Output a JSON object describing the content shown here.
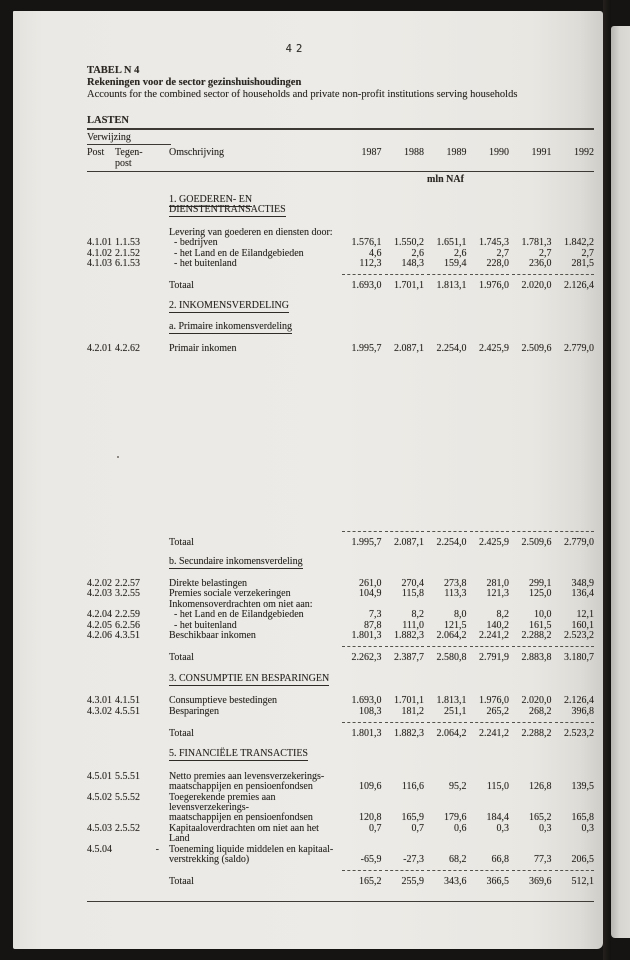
{
  "page": {
    "number": "42"
  },
  "title": {
    "id": "TABEL N 4",
    "nl": "Rekeningen voor de sector gezinshuishoudingen",
    "en": "Accounts for the combined sector of households and private non-profit institutions serving households"
  },
  "table": {
    "section_label": "LASTEN",
    "ref_label": "Verwijzing",
    "columns": {
      "post": "Post",
      "tegenpost_l1": "Tegen-",
      "tegenpost_l2": "post",
      "omschrijving": "Omschrijving"
    },
    "years": [
      "1987",
      "1988",
      "1989",
      "1990",
      "1991",
      "1992"
    ],
    "unit": "mln NAf",
    "rows": [
      {
        "type": "section",
        "label": "1. GOEDEREN- EN DIENSTENTRANSACTIES"
      },
      {
        "type": "gap",
        "h": 12
      },
      {
        "type": "text",
        "label": "Levering van goederen en diensten door:"
      },
      {
        "type": "data",
        "post": "4.1.01",
        "tegen": "1.1.53",
        "label": "- bedrijven",
        "indent": true,
        "values": [
          "1.576,1",
          "1.550,2",
          "1.651,1",
          "1.745,3",
          "1.781,3",
          "1.842,2"
        ]
      },
      {
        "type": "data",
        "post": "4.1.02",
        "tegen": "2.1.52",
        "label": "- het Land en de Eilandgebieden",
        "indent": true,
        "values": [
          "4,6",
          "2,6",
          "2,6",
          "2,7",
          "2,7",
          "2,7"
        ]
      },
      {
        "type": "data",
        "post": "4.1.03",
        "tegen": "6.1.53",
        "label": "- het buitenland",
        "indent": true,
        "values": [
          "112,3",
          "148,3",
          "159,4",
          "228,0",
          "236,0",
          "281,5"
        ]
      },
      {
        "type": "dashes"
      },
      {
        "type": "total",
        "label": "Totaal",
        "values": [
          "1.693,0",
          "1.701,1",
          "1.813,1",
          "1.976,0",
          "2.020,0",
          "2.126,4"
        ]
      },
      {
        "type": "gap",
        "h": 9
      },
      {
        "type": "section",
        "label": "2. INKOMENSVERDELING"
      },
      {
        "type": "gap",
        "h": 11
      },
      {
        "type": "sub",
        "label": "a. Primaire inkomensverdeling"
      },
      {
        "type": "gap",
        "h": 11
      },
      {
        "type": "data",
        "post": "4.2.01",
        "tegen": "4.2.62",
        "label": "Primair inkomen",
        "values": [
          "1.995,7",
          "2.087,1",
          "2.254,0",
          "2.425,9",
          "2.509,6",
          "2.779,0"
        ]
      },
      {
        "type": "gap",
        "h": 172
      },
      {
        "type": "dashes"
      },
      {
        "type": "total",
        "label": "Totaal",
        "values": [
          "1.995,7",
          "2.087,1",
          "2.254,0",
          "2.425,9",
          "2.509,6",
          "2.779,0"
        ]
      },
      {
        "type": "gap",
        "h": 9
      },
      {
        "type": "sub",
        "label": "b. Secundaire inkomensverdeling"
      },
      {
        "type": "gap",
        "h": 11
      },
      {
        "type": "data",
        "post": "4.2.02",
        "tegen": "2.2.57",
        "label": "Direkte belastingen",
        "values": [
          "261,0",
          "270,4",
          "273,8",
          "281,0",
          "299,1",
          "348,9"
        ]
      },
      {
        "type": "data",
        "post": "4.2.03",
        "tegen": "3.2.55",
        "label": "Premies sociale verzekeringen",
        "values": [
          "104,9",
          "115,8",
          "113,3",
          "121,3",
          "125,0",
          "136,4"
        ]
      },
      {
        "type": "text",
        "label": "Inkomensoverdrachten om niet aan:"
      },
      {
        "type": "data",
        "post": "4.2.04",
        "tegen": "2.2.59",
        "label": "- het Land en de Eilandgebieden",
        "indent": true,
        "values": [
          "7,3",
          "8,2",
          "8,0",
          "8,2",
          "10,0",
          "12,1"
        ]
      },
      {
        "type": "data",
        "post": "4.2.05",
        "tegen": "6.2.56",
        "label": "- het buitenland",
        "indent": true,
        "values": [
          "87,8",
          "111,0",
          "121,5",
          "140,2",
          "161,5",
          "160,1"
        ]
      },
      {
        "type": "data",
        "post": "4.2.06",
        "tegen": "4.3.51",
        "label": "Beschikbaar inkomen",
        "values": [
          "1.801,3",
          "1.882,3",
          "2.064,2",
          "2.241,2",
          "2.288,2",
          "2.523,2"
        ]
      },
      {
        "type": "dashes"
      },
      {
        "type": "total",
        "label": "Totaal",
        "values": [
          "2.262,3",
          "2.387,7",
          "2.580,8",
          "2.791,9",
          "2.883,8",
          "3.180,7"
        ]
      },
      {
        "type": "gap",
        "h": 10
      },
      {
        "type": "section",
        "label": "3. CONSUMPTIE EN BESPARINGEN"
      },
      {
        "type": "gap",
        "h": 12
      },
      {
        "type": "data",
        "post": "4.3.01",
        "tegen": "4.1.51",
        "label": "Consumptieve bestedingen",
        "values": [
          "1.693,0",
          "1.701,1",
          "1.813,1",
          "1.976,0",
          "2.020,0",
          "2.126,4"
        ]
      },
      {
        "type": "data",
        "post": "4.3.02",
        "tegen": "4.5.51",
        "label": "Besparingen",
        "values": [
          "108,3",
          "181,2",
          "251,1",
          "265,2",
          "268,2",
          "396,8"
        ]
      },
      {
        "type": "dashes"
      },
      {
        "type": "total",
        "label": "Totaal",
        "values": [
          "1.801,3",
          "1.882,3",
          "2.064,2",
          "2.241,2",
          "2.288,2",
          "2.523,2"
        ]
      },
      {
        "type": "gap",
        "h": 10
      },
      {
        "type": "section",
        "label": "5. FINANCIËLE TRANSACTIES"
      },
      {
        "type": "gap",
        "h": 12
      },
      {
        "type": "data",
        "post": "4.5.01",
        "tegen": "5.5.51",
        "label": "Netto premies aan levensverzekerings-"
      },
      {
        "type": "cont",
        "label": "maatschappijen en pensioenfondsen",
        "values": [
          "109,6",
          "116,6",
          "95,2",
          "115,0",
          "126,8",
          "139,5"
        ]
      },
      {
        "type": "data",
        "post": "4.5.02",
        "tegen": "5.5.52",
        "label": "Toegerekende premies aan levensverzekerings-"
      },
      {
        "type": "cont",
        "label": "maatschappijen en pensioenfondsen",
        "values": [
          "120,8",
          "165,9",
          "179,6",
          "184,4",
          "165,2",
          "165,8"
        ]
      },
      {
        "type": "data",
        "post": "4.5.03",
        "tegen": "2.5.52",
        "label": "Kapitaaloverdrachten om niet aan het Land",
        "values": [
          "0,7",
          "0,7",
          "0,6",
          "0,3",
          "0,3",
          "0,3"
        ]
      },
      {
        "type": "data",
        "post": "4.5.04",
        "tegen": "-",
        "label": "Toeneming liquide middelen en kapitaal-"
      },
      {
        "type": "cont",
        "label": "verstrekking (saldo)",
        "values": [
          "-65,9",
          "-27,3",
          "68,2",
          "66,8",
          "77,3",
          "206,5"
        ]
      },
      {
        "type": "dashes"
      },
      {
        "type": "total",
        "label": "Totaal",
        "values": [
          "165,2",
          "255,9",
          "343,6",
          "366,5",
          "369,6",
          "512,1"
        ]
      },
      {
        "type": "gap",
        "h": 8
      },
      {
        "type": "rule"
      }
    ]
  }
}
